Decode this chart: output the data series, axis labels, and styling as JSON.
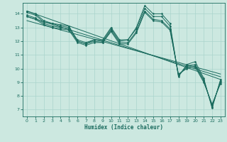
{
  "xlabel": "Humidex (Indice chaleur)",
  "bg_color": "#cce8e0",
  "grid_color": "#aad4cc",
  "line_color": "#1a6b5e",
  "x_data": [
    0,
    1,
    2,
    3,
    4,
    5,
    6,
    7,
    8,
    9,
    10,
    11,
    12,
    13,
    14,
    15,
    16,
    17,
    18,
    19,
    20,
    21,
    22,
    23
  ],
  "series": [
    [
      14.2,
      14.0,
      13.5,
      13.3,
      13.2,
      13.1,
      12.0,
      11.8,
      12.1,
      12.1,
      13.0,
      12.1,
      12.1,
      13.0,
      14.6,
      14.0,
      14.0,
      13.3,
      9.4,
      10.3,
      10.5,
      9.3,
      7.1,
      9.2
    ],
    [
      14.1,
      13.9,
      13.4,
      13.3,
      13.1,
      13.0,
      12.1,
      11.9,
      12.1,
      12.0,
      12.9,
      12.0,
      12.1,
      12.9,
      14.4,
      13.8,
      13.8,
      13.1,
      9.5,
      10.2,
      10.3,
      9.2,
      7.2,
      9.1
    ],
    [
      13.9,
      13.7,
      13.3,
      13.1,
      13.0,
      12.9,
      12.0,
      11.8,
      12.0,
      11.9,
      12.8,
      11.9,
      11.9,
      12.7,
      14.2,
      13.6,
      13.5,
      12.9,
      9.5,
      10.1,
      10.2,
      9.1,
      7.3,
      9.0
    ],
    [
      13.8,
      13.6,
      13.2,
      13.0,
      12.9,
      12.8,
      11.9,
      11.7,
      11.9,
      11.9,
      12.7,
      11.8,
      11.8,
      12.6,
      14.1,
      13.5,
      13.4,
      12.8,
      9.6,
      10.0,
      10.1,
      9.0,
      7.4,
      8.9
    ]
  ],
  "trend_lines": [
    [
      14.2,
      9.2
    ],
    [
      13.8,
      9.4
    ],
    [
      13.5,
      9.6
    ]
  ],
  "ylim": [
    6.5,
    14.8
  ],
  "xlim": [
    -0.5,
    23.5
  ],
  "yticks": [
    7,
    8,
    9,
    10,
    11,
    12,
    13,
    14
  ],
  "xticks": [
    0,
    1,
    2,
    3,
    4,
    5,
    6,
    7,
    8,
    9,
    10,
    11,
    12,
    13,
    14,
    15,
    16,
    17,
    18,
    19,
    20,
    21,
    22,
    23
  ]
}
